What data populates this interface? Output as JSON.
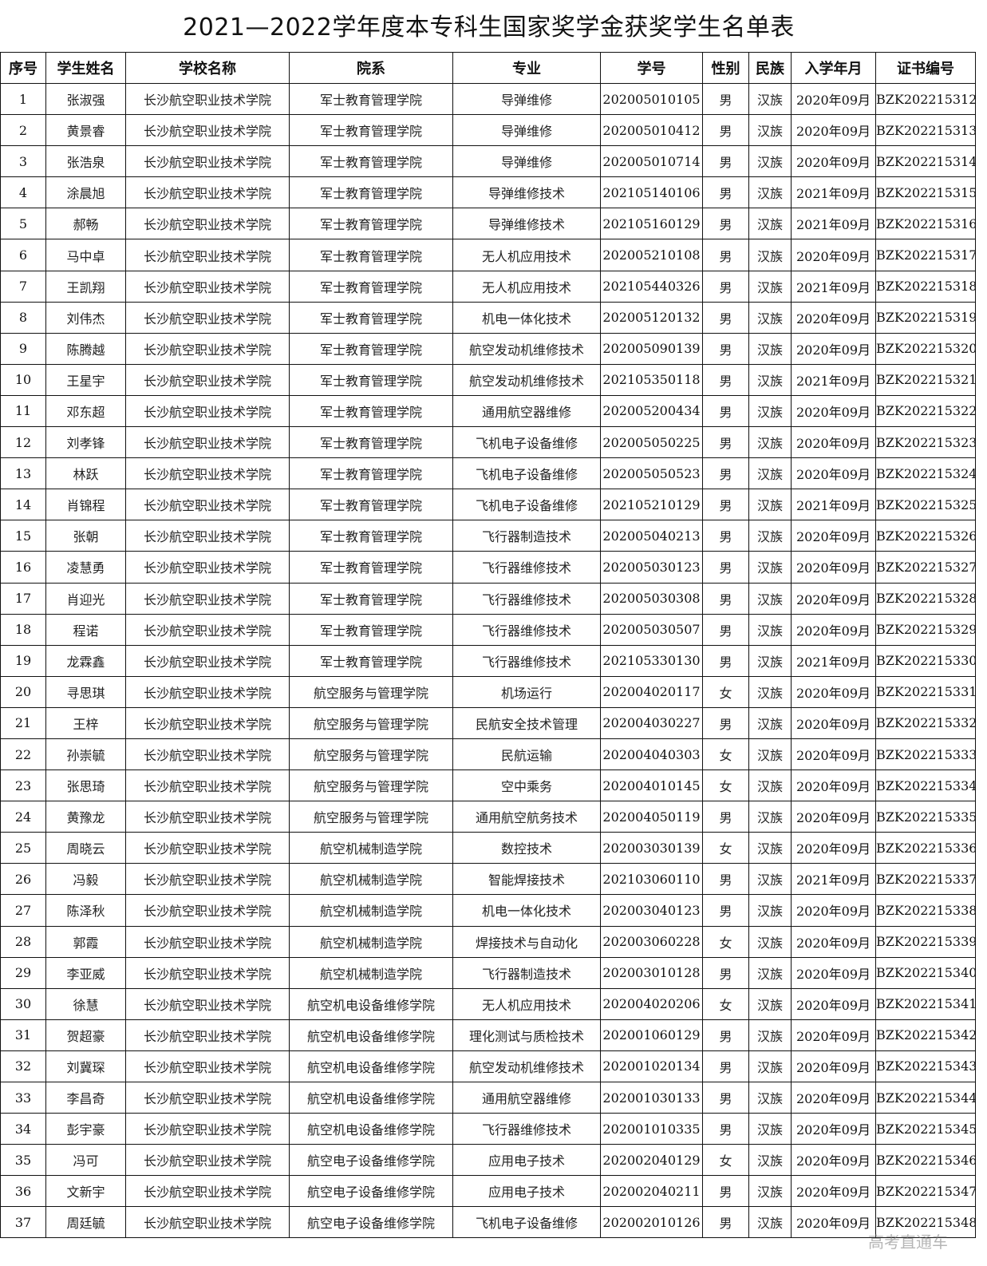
{
  "title": "2021—2022学年度本专科生国家奖学金获奖学生名单表",
  "watermark": "高考直通车",
  "columns": [
    "序号",
    "学生姓名",
    "学校名称",
    "院系",
    "专业",
    "学号",
    "性别",
    "民族",
    "入学年月",
    "证书编号"
  ],
  "rows": [
    [
      "1",
      "张淑强",
      "长沙航空职业技术学院",
      "军士教育管理学院",
      "导弹维修",
      "202005010105",
      "男",
      "汉族",
      "2020年09月",
      "BZK202215312"
    ],
    [
      "2",
      "黄景睿",
      "长沙航空职业技术学院",
      "军士教育管理学院",
      "导弹维修",
      "202005010412",
      "男",
      "汉族",
      "2020年09月",
      "BZK202215313"
    ],
    [
      "3",
      "张浩泉",
      "长沙航空职业技术学院",
      "军士教育管理学院",
      "导弹维修",
      "202005010714",
      "男",
      "汉族",
      "2020年09月",
      "BZK202215314"
    ],
    [
      "4",
      "涂晨旭",
      "长沙航空职业技术学院",
      "军士教育管理学院",
      "导弹维修技术",
      "202105140106",
      "男",
      "汉族",
      "2021年09月",
      "BZK202215315"
    ],
    [
      "5",
      "郝畅",
      "长沙航空职业技术学院",
      "军士教育管理学院",
      "导弹维修技术",
      "202105160129",
      "男",
      "汉族",
      "2021年09月",
      "BZK202215316"
    ],
    [
      "6",
      "马中卓",
      "长沙航空职业技术学院",
      "军士教育管理学院",
      "无人机应用技术",
      "202005210108",
      "男",
      "汉族",
      "2020年09月",
      "BZK202215317"
    ],
    [
      "7",
      "王凯翔",
      "长沙航空职业技术学院",
      "军士教育管理学院",
      "无人机应用技术",
      "202105440326",
      "男",
      "汉族",
      "2021年09月",
      "BZK202215318"
    ],
    [
      "8",
      "刘伟杰",
      "长沙航空职业技术学院",
      "军士教育管理学院",
      "机电一体化技术",
      "202005120132",
      "男",
      "汉族",
      "2020年09月",
      "BZK202215319"
    ],
    [
      "9",
      "陈腾越",
      "长沙航空职业技术学院",
      "军士教育管理学院",
      "航空发动机维修技术",
      "202005090139",
      "男",
      "汉族",
      "2020年09月",
      "BZK202215320"
    ],
    [
      "10",
      "王星宇",
      "长沙航空职业技术学院",
      "军士教育管理学院",
      "航空发动机维修技术",
      "202105350118",
      "男",
      "汉族",
      "2021年09月",
      "BZK202215321"
    ],
    [
      "11",
      "邓东超",
      "长沙航空职业技术学院",
      "军士教育管理学院",
      "通用航空器维修",
      "202005200434",
      "男",
      "汉族",
      "2020年09月",
      "BZK202215322"
    ],
    [
      "12",
      "刘孝锋",
      "长沙航空职业技术学院",
      "军士教育管理学院",
      "飞机电子设备维修",
      "202005050225",
      "男",
      "汉族",
      "2020年09月",
      "BZK202215323"
    ],
    [
      "13",
      "林跃",
      "长沙航空职业技术学院",
      "军士教育管理学院",
      "飞机电子设备维修",
      "202005050523",
      "男",
      "汉族",
      "2020年09月",
      "BZK202215324"
    ],
    [
      "14",
      "肖锦程",
      "长沙航空职业技术学院",
      "军士教育管理学院",
      "飞机电子设备维修",
      "202105210129",
      "男",
      "汉族",
      "2021年09月",
      "BZK202215325"
    ],
    [
      "15",
      "张朝",
      "长沙航空职业技术学院",
      "军士教育管理学院",
      "飞行器制造技术",
      "202005040213",
      "男",
      "汉族",
      "2020年09月",
      "BZK202215326"
    ],
    [
      "16",
      "凌慧勇",
      "长沙航空职业技术学院",
      "军士教育管理学院",
      "飞行器维修技术",
      "202005030123",
      "男",
      "汉族",
      "2020年09月",
      "BZK202215327"
    ],
    [
      "17",
      "肖迎光",
      "长沙航空职业技术学院",
      "军士教育管理学院",
      "飞行器维修技术",
      "202005030308",
      "男",
      "汉族",
      "2020年09月",
      "BZK202215328"
    ],
    [
      "18",
      "程诺",
      "长沙航空职业技术学院",
      "军士教育管理学院",
      "飞行器维修技术",
      "202005030507",
      "男",
      "汉族",
      "2020年09月",
      "BZK202215329"
    ],
    [
      "19",
      "龙霖鑫",
      "长沙航空职业技术学院",
      "军士教育管理学院",
      "飞行器维修技术",
      "202105330130",
      "男",
      "汉族",
      "2021年09月",
      "BZK202215330"
    ],
    [
      "20",
      "寻思琪",
      "长沙航空职业技术学院",
      "航空服务与管理学院",
      "机场运行",
      "202004020117",
      "女",
      "汉族",
      "2020年09月",
      "BZK202215331"
    ],
    [
      "21",
      "王梓",
      "长沙航空职业技术学院",
      "航空服务与管理学院",
      "民航安全技术管理",
      "202004030227",
      "男",
      "汉族",
      "2020年09月",
      "BZK202215332"
    ],
    [
      "22",
      "孙崇毓",
      "长沙航空职业技术学院",
      "航空服务与管理学院",
      "民航运输",
      "202004040303",
      "女",
      "汉族",
      "2020年09月",
      "BZK202215333"
    ],
    [
      "23",
      "张思琦",
      "长沙航空职业技术学院",
      "航空服务与管理学院",
      "空中乘务",
      "202004010145",
      "女",
      "汉族",
      "2020年09月",
      "BZK202215334"
    ],
    [
      "24",
      "黄豫龙",
      "长沙航空职业技术学院",
      "航空服务与管理学院",
      "通用航空航务技术",
      "202004050119",
      "男",
      "汉族",
      "2020年09月",
      "BZK202215335"
    ],
    [
      "25",
      "周晓云",
      "长沙航空职业技术学院",
      "航空机械制造学院",
      "数控技术",
      "202003030139",
      "女",
      "汉族",
      "2020年09月",
      "BZK202215336"
    ],
    [
      "26",
      "冯毅",
      "长沙航空职业技术学院",
      "航空机械制造学院",
      "智能焊接技术",
      "202103060110",
      "男",
      "汉族",
      "2021年09月",
      "BZK202215337"
    ],
    [
      "27",
      "陈泽秋",
      "长沙航空职业技术学院",
      "航空机械制造学院",
      "机电一体化技术",
      "202003040123",
      "男",
      "汉族",
      "2020年09月",
      "BZK202215338"
    ],
    [
      "28",
      "郭霞",
      "长沙航空职业技术学院",
      "航空机械制造学院",
      "焊接技术与自动化",
      "202003060228",
      "女",
      "汉族",
      "2020年09月",
      "BZK202215339"
    ],
    [
      "29",
      "李亚威",
      "长沙航空职业技术学院",
      "航空机械制造学院",
      "飞行器制造技术",
      "202003010128",
      "男",
      "汉族",
      "2020年09月",
      "BZK202215340"
    ],
    [
      "30",
      "徐慧",
      "长沙航空职业技术学院",
      "航空机电设备维修学院",
      "无人机应用技术",
      "202004020206",
      "女",
      "汉族",
      "2020年09月",
      "BZK202215341"
    ],
    [
      "31",
      "贺超豪",
      "长沙航空职业技术学院",
      "航空机电设备维修学院",
      "理化测试与质检技术",
      "202001060129",
      "男",
      "汉族",
      "2020年09月",
      "BZK202215342"
    ],
    [
      "32",
      "刘冀琛",
      "长沙航空职业技术学院",
      "航空机电设备维修学院",
      "航空发动机维修技术",
      "202001020134",
      "男",
      "汉族",
      "2020年09月",
      "BZK202215343"
    ],
    [
      "33",
      "李昌奇",
      "长沙航空职业技术学院",
      "航空机电设备维修学院",
      "通用航空器维修",
      "202001030133",
      "男",
      "汉族",
      "2020年09月",
      "BZK202215344"
    ],
    [
      "34",
      "彭宇豪",
      "长沙航空职业技术学院",
      "航空机电设备维修学院",
      "飞行器维修技术",
      "202001010335",
      "男",
      "汉族",
      "2020年09月",
      "BZK202215345"
    ],
    [
      "35",
      "冯可",
      "长沙航空职业技术学院",
      "航空电子设备维修学院",
      "应用电子技术",
      "202002040129",
      "女",
      "汉族",
      "2020年09月",
      "BZK202215346"
    ],
    [
      "36",
      "文新宇",
      "长沙航空职业技术学院",
      "航空电子设备维修学院",
      "应用电子技术",
      "202002040211",
      "男",
      "汉族",
      "2020年09月",
      "BZK202215347"
    ],
    [
      "37",
      "周廷毓",
      "长沙航空职业技术学院",
      "航空电子设备维修学院",
      "飞机电子设备维修",
      "202002010126",
      "男",
      "汉族",
      "2020年09月",
      "BZK202215348"
    ]
  ]
}
